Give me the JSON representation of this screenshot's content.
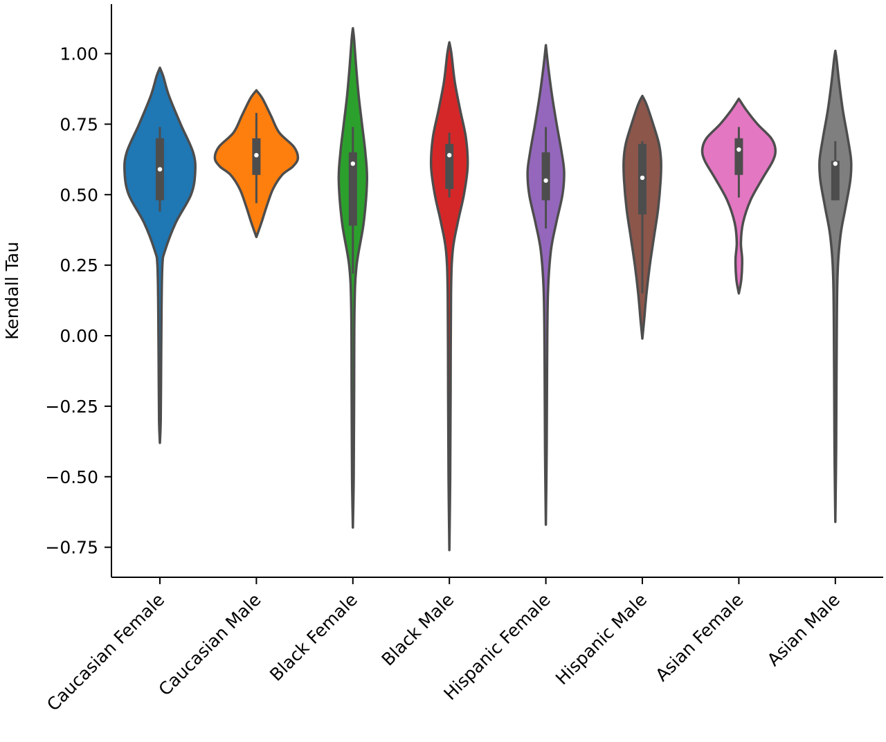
{
  "chart_data": {
    "type": "violin",
    "title": "",
    "xlabel": "",
    "ylabel": "Kendall Tau",
    "ylim": [
      -0.86,
      1.18
    ],
    "yticks": [
      -0.75,
      -0.5,
      -0.25,
      0.0,
      0.25,
      0.5,
      0.75,
      1.0
    ],
    "ytick_labels": [
      "−0.75",
      "−0.50",
      "−0.25",
      "0.00",
      "0.25",
      "0.50",
      "0.75",
      "1.00"
    ],
    "grid": false,
    "legend": "none",
    "categories": [
      "Caucasian Female",
      "Caucasian Male",
      "Black Female",
      "Black Male",
      "Hispanic Female",
      "Hispanic Male",
      "Asian Female",
      "Asian Male"
    ],
    "colors": [
      "#1f77b4",
      "#ff7f0e",
      "#2ca02c",
      "#d62728",
      "#9467bd",
      "#8c564b",
      "#e377c2",
      "#7f7f7f"
    ],
    "series": [
      {
        "min": -0.38,
        "max": 0.95,
        "whisker_low": 0.44,
        "q1": 0.48,
        "median": 0.59,
        "q3": 0.7,
        "whisker_high": 0.74,
        "density": [
          [
            -0.38,
            0.0
          ],
          [
            -0.3,
            0.02
          ],
          [
            -0.1,
            0.03
          ],
          [
            0.1,
            0.04
          ],
          [
            0.25,
            0.06
          ],
          [
            0.3,
            0.12
          ],
          [
            0.4,
            0.38
          ],
          [
            0.5,
            0.75
          ],
          [
            0.58,
            0.85
          ],
          [
            0.65,
            0.8
          ],
          [
            0.75,
            0.5
          ],
          [
            0.85,
            0.22
          ],
          [
            0.92,
            0.08
          ],
          [
            0.95,
            0.0
          ]
        ]
      },
      {
        "min": 0.35,
        "max": 0.87,
        "whisker_low": 0.47,
        "q1": 0.57,
        "median": 0.64,
        "q3": 0.7,
        "whisker_high": 0.79,
        "density": [
          [
            0.35,
            0.0
          ],
          [
            0.4,
            0.12
          ],
          [
            0.46,
            0.25
          ],
          [
            0.52,
            0.4
          ],
          [
            0.57,
            0.62
          ],
          [
            0.6,
            0.88
          ],
          [
            0.63,
            1.0
          ],
          [
            0.67,
            0.9
          ],
          [
            0.72,
            0.55
          ],
          [
            0.78,
            0.35
          ],
          [
            0.84,
            0.15
          ],
          [
            0.87,
            0.0
          ]
        ]
      },
      {
        "min": -0.68,
        "max": 1.09,
        "whisker_low": 0.22,
        "q1": 0.39,
        "median": 0.61,
        "q3": 0.65,
        "whisker_high": 0.74,
        "density": [
          [
            -0.68,
            0.0
          ],
          [
            -0.5,
            0.02
          ],
          [
            -0.2,
            0.03
          ],
          [
            0.1,
            0.04
          ],
          [
            0.25,
            0.09
          ],
          [
            0.4,
            0.26
          ],
          [
            0.55,
            0.34
          ],
          [
            0.65,
            0.3
          ],
          [
            0.75,
            0.22
          ],
          [
            0.85,
            0.14
          ],
          [
            0.95,
            0.08
          ],
          [
            1.05,
            0.03
          ],
          [
            1.09,
            0.0
          ]
        ]
      },
      {
        "min": -0.76,
        "max": 1.04,
        "whisker_low": 0.49,
        "q1": 0.52,
        "median": 0.64,
        "q3": 0.68,
        "whisker_high": 0.72,
        "density": [
          [
            -0.76,
            0.0
          ],
          [
            -0.5,
            0.02
          ],
          [
            -0.2,
            0.03
          ],
          [
            0.15,
            0.04
          ],
          [
            0.3,
            0.08
          ],
          [
            0.4,
            0.2
          ],
          [
            0.5,
            0.35
          ],
          [
            0.6,
            0.44
          ],
          [
            0.7,
            0.4
          ],
          [
            0.8,
            0.26
          ],
          [
            0.9,
            0.13
          ],
          [
            1.0,
            0.05
          ],
          [
            1.04,
            0.0
          ]
        ]
      },
      {
        "min": -0.67,
        "max": 1.03,
        "whisker_low": 0.38,
        "q1": 0.48,
        "median": 0.55,
        "q3": 0.65,
        "whisker_high": 0.74,
        "density": [
          [
            -0.67,
            0.0
          ],
          [
            -0.4,
            0.02
          ],
          [
            -0.1,
            0.03
          ],
          [
            0.15,
            0.05
          ],
          [
            0.3,
            0.12
          ],
          [
            0.4,
            0.25
          ],
          [
            0.5,
            0.4
          ],
          [
            0.58,
            0.44
          ],
          [
            0.65,
            0.38
          ],
          [
            0.75,
            0.26
          ],
          [
            0.85,
            0.15
          ],
          [
            0.95,
            0.06
          ],
          [
            1.03,
            0.0
          ]
        ]
      },
      {
        "min": -0.01,
        "max": 0.85,
        "whisker_low": 0.15,
        "q1": 0.43,
        "median": 0.56,
        "q3": 0.68,
        "whisker_high": 0.69,
        "density": [
          [
            -0.01,
            0.0
          ],
          [
            0.05,
            0.04
          ],
          [
            0.15,
            0.1
          ],
          [
            0.25,
            0.18
          ],
          [
            0.35,
            0.28
          ],
          [
            0.45,
            0.38
          ],
          [
            0.55,
            0.44
          ],
          [
            0.62,
            0.45
          ],
          [
            0.68,
            0.4
          ],
          [
            0.75,
            0.26
          ],
          [
            0.82,
            0.1
          ],
          [
            0.85,
            0.0
          ]
        ]
      },
      {
        "min": 0.15,
        "max": 0.84,
        "whisker_low": 0.49,
        "q1": 0.57,
        "median": 0.66,
        "q3": 0.7,
        "whisker_high": 0.74,
        "density": [
          [
            0.15,
            0.0
          ],
          [
            0.2,
            0.06
          ],
          [
            0.27,
            0.08
          ],
          [
            0.33,
            0.05
          ],
          [
            0.4,
            0.1
          ],
          [
            0.48,
            0.28
          ],
          [
            0.56,
            0.58
          ],
          [
            0.62,
            0.82
          ],
          [
            0.66,
            0.88
          ],
          [
            0.7,
            0.78
          ],
          [
            0.75,
            0.45
          ],
          [
            0.8,
            0.18
          ],
          [
            0.84,
            0.0
          ]
        ]
      },
      {
        "min": -0.66,
        "max": 1.01,
        "whisker_low": 0.48,
        "q1": 0.48,
        "median": 0.61,
        "q3": 0.62,
        "whisker_high": 0.69,
        "density": [
          [
            -0.66,
            0.0
          ],
          [
            -0.4,
            0.02
          ],
          [
            -0.1,
            0.03
          ],
          [
            0.2,
            0.05
          ],
          [
            0.35,
            0.12
          ],
          [
            0.45,
            0.24
          ],
          [
            0.55,
            0.36
          ],
          [
            0.62,
            0.38
          ],
          [
            0.7,
            0.3
          ],
          [
            0.8,
            0.18
          ],
          [
            0.9,
            0.09
          ],
          [
            0.98,
            0.03
          ],
          [
            1.01,
            0.0
          ]
        ]
      }
    ]
  }
}
